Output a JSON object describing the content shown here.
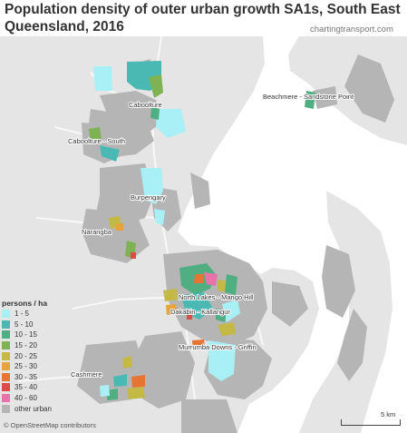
{
  "title": "Population density of outer urban growth SA1s, South East Queensland, 2016",
  "source": "chartingtransport.com",
  "colors": {
    "water": "#ffffff",
    "land": "#e5e5e5",
    "road": "#f8f8f8",
    "other_urban": "#b5b5b5"
  },
  "legend": {
    "title": "persons / ha",
    "items": [
      {
        "label": "1 - 5",
        "color": "#a8f0f5"
      },
      {
        "label": "5 - 10",
        "color": "#4bb9b3"
      },
      {
        "label": "10 - 15",
        "color": "#4fae82"
      },
      {
        "label": "15 - 20",
        "color": "#7fb253"
      },
      {
        "label": "20 - 25",
        "color": "#c4b945"
      },
      {
        "label": "25 - 30",
        "color": "#e6a33e"
      },
      {
        "label": "30 - 35",
        "color": "#e67432"
      },
      {
        "label": "35 - 40",
        "color": "#dc4a4a"
      },
      {
        "label": "40 - 60",
        "color": "#e773a8"
      },
      {
        "label": "other urban",
        "color": "#b5b5b5"
      }
    ]
  },
  "places": [
    {
      "name": "Caboolture"
    },
    {
      "name": "Beachmere - Sandstone Point"
    },
    {
      "name": "Caboolture - South"
    },
    {
      "name": "Burpengary"
    },
    {
      "name": "Narangba"
    },
    {
      "name": "North Lakes - Mango Hill"
    },
    {
      "name": "Dakabin - Kallangur"
    },
    {
      "name": "Murrumba Downs - Griffin"
    },
    {
      "name": "Cashmere"
    }
  ],
  "attribution": "© OpenStreetMap contributors",
  "scale": {
    "label": "5 km"
  }
}
